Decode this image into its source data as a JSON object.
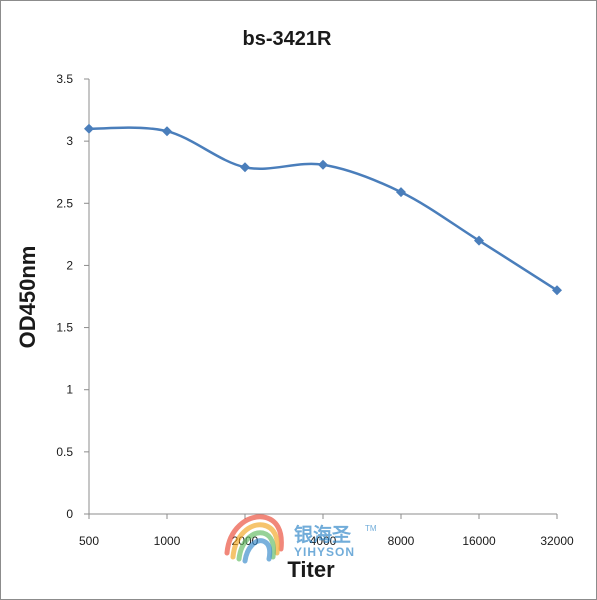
{
  "chart_data": {
    "type": "line",
    "title": "bs-3421R",
    "xlabel": "Titer",
    "ylabel": "OD450nm",
    "categories": [
      "500",
      "1000",
      "2000",
      "4000",
      "8000",
      "16000",
      "32000"
    ],
    "series": [
      {
        "values": [
          3.1,
          3.08,
          2.79,
          2.81,
          2.59,
          2.2,
          1.8
        ]
      }
    ],
    "ylim": [
      0,
      3.5
    ],
    "yticks": [
      0,
      0.5,
      1,
      1.5,
      2,
      2.5,
      3,
      3.5
    ],
    "ytick_labels": [
      "0",
      "0.5",
      "1",
      "1.5",
      "2",
      "2.5",
      "3",
      "3.5"
    ],
    "grid": false,
    "legend": "none",
    "series_color": "#4a7ebb"
  },
  "watermark": {
    "chinese_text": "银海圣",
    "english_text": "YIHYSON",
    "tm": "TM"
  }
}
